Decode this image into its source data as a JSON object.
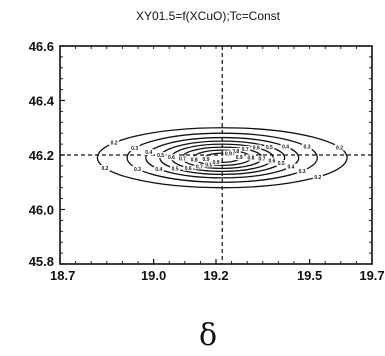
{
  "chart_data": {
    "type": "contour",
    "title": "XY01.5=f(XCuO);Tc=Const",
    "xlabel": "δ",
    "ylabel": "",
    "xlim": [
      18.7,
      19.7
    ],
    "ylim": [
      45.8,
      46.6
    ],
    "x_ticks": [
      {
        "value": 18.7,
        "label": "18.7"
      },
      {
        "value": 19.0,
        "label": "19.0"
      },
      {
        "value": 19.2,
        "label": "19.2"
      },
      {
        "value": 19.5,
        "label": "19.5"
      },
      {
        "value": 19.7,
        "label": "19.7"
      }
    ],
    "y_ticks": [
      {
        "value": 45.8,
        "label": "45.8"
      },
      {
        "value": 46.0,
        "label": "46.0"
      },
      {
        "value": 46.2,
        "label": "46.2"
      },
      {
        "value": 46.4,
        "label": "46.4"
      },
      {
        "value": 46.6,
        "label": "46.6"
      }
    ],
    "grid": false,
    "reference_lines": {
      "x": 19.22,
      "y": 46.2
    },
    "center": {
      "x": 19.22,
      "y": 46.19
    },
    "contours": [
      {
        "label": "0.2",
        "rx": 0.4,
        "ry": 0.11
      },
      {
        "label": "0.3",
        "rx": 0.305,
        "ry": 0.09
      },
      {
        "label": "0.4",
        "rx": 0.245,
        "ry": 0.074
      },
      {
        "label": "0.5",
        "rx": 0.2,
        "ry": 0.061
      },
      {
        "label": "0.6",
        "rx": 0.163,
        "ry": 0.05
      },
      {
        "label": "0.7",
        "rx": 0.128,
        "ry": 0.039
      },
      {
        "label": "0.8",
        "rx": 0.092,
        "ry": 0.028
      },
      {
        "label": "0.9",
        "rx": 0.055,
        "ry": 0.017
      }
    ]
  }
}
